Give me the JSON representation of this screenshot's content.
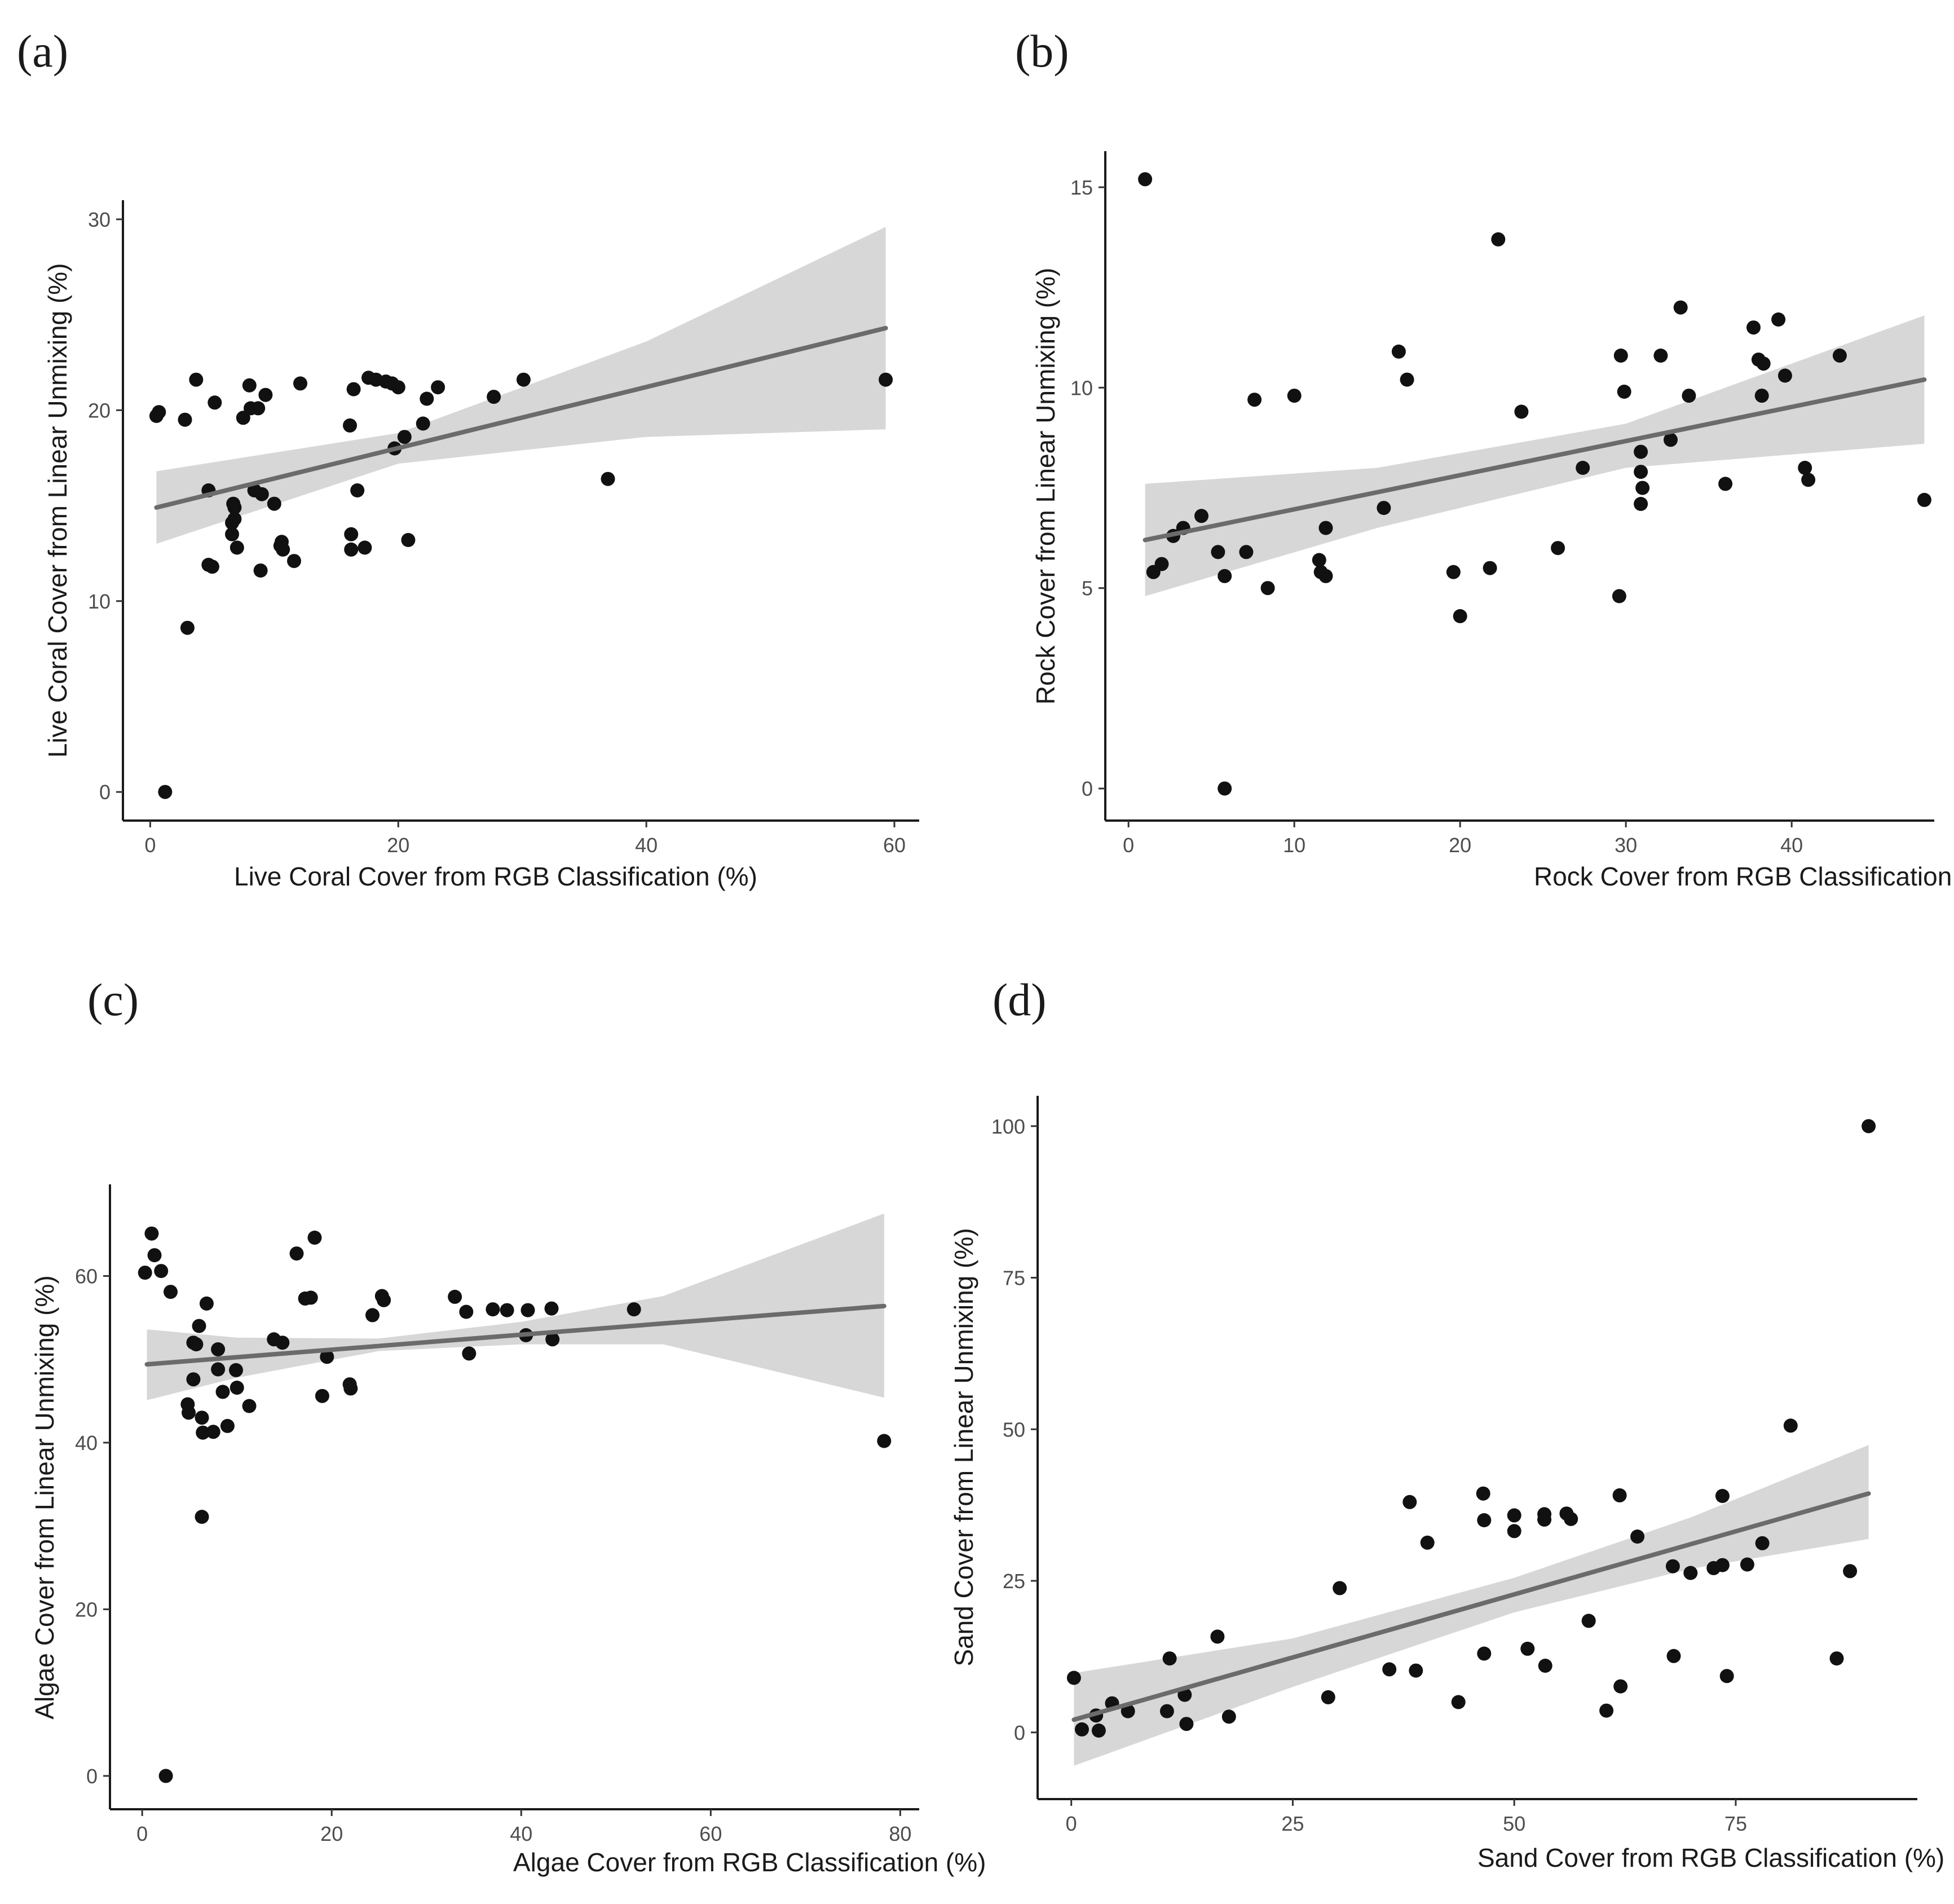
{
  "colors": {
    "point": "#111111",
    "fit": "#6b6b6b",
    "band": "#d7d7d7",
    "axis": "#1a1a1a"
  },
  "chart_data": [
    {
      "type": "scatter",
      "panel_label": "(a)",
      "xlabel": "Live Coral Cover from RGB Classification (%)",
      "ylabel": "Live Coral Cover from Linear Unmixing (%)",
      "xlim": [
        -2.2,
        62
      ],
      "ylim": [
        -1.5,
        31
      ],
      "xticks": [
        0,
        20,
        40,
        60
      ],
      "yticks": [
        0,
        10,
        20,
        30
      ],
      "fit": {
        "x": [
          0.5,
          59.3
        ],
        "y": [
          14.9,
          24.3
        ]
      },
      "band": {
        "x": [
          0.5,
          20,
          40,
          59.3
        ],
        "upper": [
          16.8,
          18.8,
          23.6,
          29.6
        ],
        "lower": [
          13.0,
          17.2,
          18.6,
          19.0
        ]
      },
      "points": [
        [
          0.5,
          19.7
        ],
        [
          0.7,
          19.9
        ],
        [
          1.2,
          0.0
        ],
        [
          2.8,
          19.5
        ],
        [
          3.0,
          8.6
        ],
        [
          3.7,
          21.6
        ],
        [
          4.7,
          15.8
        ],
        [
          4.7,
          11.9
        ],
        [
          5.0,
          11.8
        ],
        [
          5.2,
          20.4
        ],
        [
          6.6,
          14.1
        ],
        [
          6.6,
          13.5
        ],
        [
          6.7,
          15.1
        ],
        [
          6.8,
          14.9
        ],
        [
          6.8,
          14.3
        ],
        [
          7.0,
          12.8
        ],
        [
          7.5,
          19.6
        ],
        [
          8.0,
          21.3
        ],
        [
          8.1,
          20.1
        ],
        [
          8.4,
          15.8
        ],
        [
          8.7,
          20.1
        ],
        [
          8.9,
          11.6
        ],
        [
          9.0,
          15.6
        ],
        [
          9.3,
          20.8
        ],
        [
          10.0,
          15.1
        ],
        [
          10.5,
          12.9
        ],
        [
          10.6,
          13.1
        ],
        [
          10.7,
          12.7
        ],
        [
          11.6,
          12.1
        ],
        [
          12.1,
          21.4
        ],
        [
          16.1,
          19.2
        ],
        [
          16.2,
          13.5
        ],
        [
          16.2,
          12.7
        ],
        [
          16.4,
          21.1
        ],
        [
          16.7,
          15.8
        ],
        [
          17.3,
          12.8
        ],
        [
          17.6,
          21.7
        ],
        [
          18.2,
          21.6
        ],
        [
          19.0,
          21.5
        ],
        [
          19.5,
          21.4
        ],
        [
          19.7,
          18.0
        ],
        [
          20.0,
          21.2
        ],
        [
          20.5,
          18.6
        ],
        [
          20.8,
          13.2
        ],
        [
          22.0,
          19.3
        ],
        [
          22.3,
          20.6
        ],
        [
          23.2,
          21.2
        ],
        [
          27.7,
          20.7
        ],
        [
          30.1,
          21.6
        ],
        [
          36.9,
          16.4
        ],
        [
          59.3,
          21.6
        ]
      ]
    },
    {
      "type": "scatter",
      "panel_label": "(b)",
      "xlabel": "Rock Cover from RGB Classification (%)",
      "ylabel": "Rock Cover from Linear Unmixing (%)",
      "xlim": [
        -1.4,
        48.6
      ],
      "ylim": [
        -0.8,
        15.9
      ],
      "xticks": [
        0,
        10,
        20,
        30,
        40
      ],
      "yticks": [
        0,
        5,
        10,
        15
      ],
      "fit": {
        "x": [
          1.0,
          48.0
        ],
        "y": [
          6.2,
          10.2
        ]
      },
      "band": {
        "x": [
          1.0,
          15,
          30,
          48.0
        ],
        "upper": [
          7.6,
          8.0,
          9.1,
          11.8
        ],
        "lower": [
          4.8,
          6.5,
          8.0,
          8.6
        ]
      },
      "points": [
        [
          1.0,
          15.2
        ],
        [
          1.5,
          5.4
        ],
        [
          2.0,
          5.6
        ],
        [
          2.7,
          6.3
        ],
        [
          3.3,
          6.5
        ],
        [
          4.4,
          6.8
        ],
        [
          5.4,
          5.9
        ],
        [
          5.8,
          5.3
        ],
        [
          5.8,
          0.0
        ],
        [
          7.1,
          5.9
        ],
        [
          7.6,
          9.7
        ],
        [
          8.4,
          5.0
        ],
        [
          10.0,
          9.8
        ],
        [
          11.5,
          5.7
        ],
        [
          11.6,
          5.4
        ],
        [
          11.9,
          6.5
        ],
        [
          11.9,
          5.3
        ],
        [
          15.4,
          7.0
        ],
        [
          16.3,
          10.9
        ],
        [
          16.8,
          10.2
        ],
        [
          19.6,
          5.4
        ],
        [
          20.0,
          4.3
        ],
        [
          21.8,
          5.5
        ],
        [
          22.3,
          13.7
        ],
        [
          23.7,
          9.4
        ],
        [
          25.9,
          6.0
        ],
        [
          27.4,
          8.0
        ],
        [
          29.6,
          4.8
        ],
        [
          29.7,
          10.8
        ],
        [
          29.9,
          9.9
        ],
        [
          30.9,
          8.4
        ],
        [
          30.9,
          7.9
        ],
        [
          31.0,
          7.5
        ],
        [
          30.9,
          7.1
        ],
        [
          32.1,
          10.8
        ],
        [
          32.7,
          8.7
        ],
        [
          33.3,
          12.0
        ],
        [
          33.8,
          9.8
        ],
        [
          36.0,
          7.6
        ],
        [
          37.7,
          11.5
        ],
        [
          38.0,
          10.7
        ],
        [
          38.2,
          9.8
        ],
        [
          38.3,
          10.6
        ],
        [
          39.2,
          11.7
        ],
        [
          39.6,
          10.3
        ],
        [
          40.8,
          8.0
        ],
        [
          41.0,
          7.7
        ],
        [
          42.9,
          10.8
        ],
        [
          48.0,
          7.2
        ]
      ]
    },
    {
      "type": "scatter",
      "panel_label": "(c)",
      "xlabel": "Algae Cover from RGB Classification (%)",
      "ylabel": "Algae Cover from Linear Unmixing (%)",
      "xlim": [
        -3.4,
        82
      ],
      "ylim": [
        -4,
        71
      ],
      "xticks": [
        0,
        20,
        40,
        60,
        80
      ],
      "yticks": [
        0,
        20,
        40,
        60
      ],
      "fit": {
        "x": [
          0.5,
          78.3
        ],
        "y": [
          49.4,
          56.4
        ]
      },
      "band": {
        "x": [
          0.5,
          10,
          25,
          40,
          55,
          78.3
        ],
        "upper": [
          53.6,
          52.6,
          52.5,
          54.5,
          57.6,
          67.5
        ],
        "lower": [
          45.1,
          47.8,
          51.0,
          51.8,
          51.8,
          45.4
        ]
      },
      "points": [
        [
          0.3,
          60.4
        ],
        [
          1.0,
          65.1
        ],
        [
          1.3,
          62.5
        ],
        [
          2.0,
          60.6
        ],
        [
          2.5,
          0.0
        ],
        [
          3.0,
          58.1
        ],
        [
          4.8,
          44.6
        ],
        [
          4.9,
          43.6
        ],
        [
          5.4,
          52.0
        ],
        [
          5.4,
          47.6
        ],
        [
          5.7,
          51.8
        ],
        [
          6.0,
          54.0
        ],
        [
          6.3,
          43.0
        ],
        [
          6.4,
          41.2
        ],
        [
          6.3,
          31.1
        ],
        [
          6.8,
          56.7
        ],
        [
          7.5,
          41.3
        ],
        [
          8.0,
          51.2
        ],
        [
          8.0,
          48.8
        ],
        [
          8.5,
          46.1
        ],
        [
          9.0,
          42.0
        ],
        [
          9.9,
          48.7
        ],
        [
          10.0,
          46.6
        ],
        [
          11.3,
          44.4
        ],
        [
          13.9,
          52.4
        ],
        [
          14.8,
          52.0
        ],
        [
          16.3,
          62.7
        ],
        [
          17.2,
          57.3
        ],
        [
          17.8,
          57.4
        ],
        [
          18.2,
          64.6
        ],
        [
          19.0,
          45.6
        ],
        [
          19.5,
          50.3
        ],
        [
          21.9,
          47.0
        ],
        [
          22.0,
          46.5
        ],
        [
          24.3,
          55.3
        ],
        [
          25.3,
          57.6
        ],
        [
          25.5,
          57.1
        ],
        [
          33.0,
          57.5
        ],
        [
          34.2,
          55.7
        ],
        [
          34.5,
          50.7
        ],
        [
          37.0,
          56.0
        ],
        [
          38.5,
          55.9
        ],
        [
          40.5,
          52.9
        ],
        [
          40.7,
          55.9
        ],
        [
          43.2,
          56.1
        ],
        [
          43.3,
          52.4
        ],
        [
          51.9,
          56.0
        ],
        [
          78.3,
          40.2
        ]
      ]
    },
    {
      "type": "scatter",
      "panel_label": "(d)",
      "xlabel": "Sand Cover from RGB Classification (%)",
      "ylabel": "Sand Cover from Linear Unmixing (%)",
      "xlim": [
        -3.8,
        95.5
      ],
      "ylim": [
        -11,
        105
      ],
      "xticks": [
        0,
        25,
        50,
        75
      ],
      "yticks": [
        0,
        25,
        50,
        75,
        100
      ],
      "fit": {
        "x": [
          0.3,
          90.0
        ],
        "y": [
          2.1,
          39.4
        ]
      },
      "band": {
        "x": [
          0.3,
          25,
          50,
          70,
          90.0
        ],
        "upper": [
          9.8,
          15.5,
          25.5,
          35.5,
          47.4
        ],
        "lower": [
          -5.5,
          7.5,
          19.8,
          27.0,
          31.9
        ]
      },
      "points": [
        [
          0.3,
          9.0
        ],
        [
          1.2,
          0.5
        ],
        [
          2.8,
          2.8
        ],
        [
          3.1,
          0.3
        ],
        [
          4.6,
          4.8
        ],
        [
          6.4,
          3.5
        ],
        [
          10.8,
          3.5
        ],
        [
          11.1,
          12.2
        ],
        [
          12.8,
          6.2
        ],
        [
          13.0,
          1.4
        ],
        [
          16.5,
          15.8
        ],
        [
          17.8,
          2.6
        ],
        [
          29.0,
          5.8
        ],
        [
          30.3,
          23.8
        ],
        [
          35.9,
          10.4
        ],
        [
          38.2,
          38.0
        ],
        [
          38.9,
          10.2
        ],
        [
          40.2,
          31.3
        ],
        [
          43.7,
          5.0
        ],
        [
          46.5,
          39.4
        ],
        [
          46.6,
          35.0
        ],
        [
          46.6,
          13.0
        ],
        [
          50.0,
          35.8
        ],
        [
          50.0,
          33.2
        ],
        [
          51.5,
          13.8
        ],
        [
          53.4,
          36.0
        ],
        [
          53.4,
          35.1
        ],
        [
          53.5,
          11.0
        ],
        [
          55.9,
          36.1
        ],
        [
          56.4,
          35.2
        ],
        [
          58.4,
          18.4
        ],
        [
          60.4,
          3.6
        ],
        [
          61.9,
          39.1
        ],
        [
          62.0,
          7.6
        ],
        [
          63.9,
          32.3
        ],
        [
          67.9,
          27.4
        ],
        [
          68.0,
          12.6
        ],
        [
          69.9,
          26.3
        ],
        [
          72.5,
          27.1
        ],
        [
          73.5,
          27.6
        ],
        [
          73.5,
          39.0
        ],
        [
          74.0,
          9.3
        ],
        [
          76.3,
          27.7
        ],
        [
          78.0,
          31.2
        ],
        [
          81.2,
          50.6
        ],
        [
          86.4,
          12.2
        ],
        [
          87.9,
          26.6
        ],
        [
          90.0,
          100.0
        ]
      ]
    }
  ]
}
